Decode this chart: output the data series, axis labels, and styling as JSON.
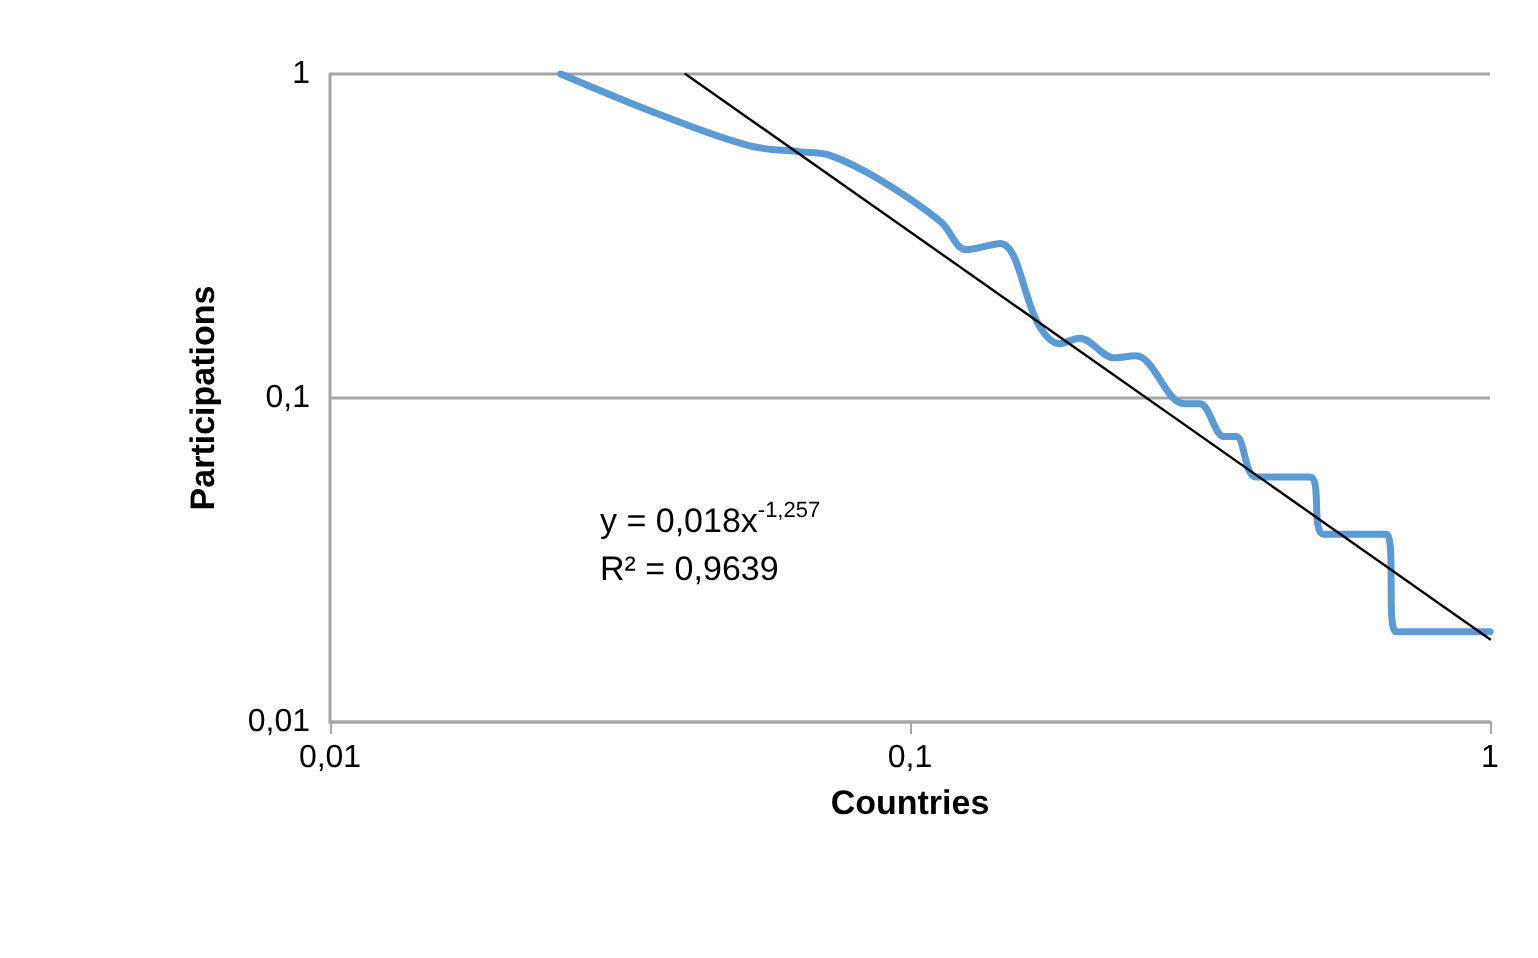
{
  "chart_data": {
    "type": "line",
    "xlabel": "Countries",
    "ylabel": "Participations",
    "log": "xy",
    "grid": "y",
    "marker": "none",
    "xlim": [
      0.01,
      1
    ],
    "ylim": [
      0.01,
      1
    ],
    "xticks": [
      {
        "value": 0.01,
        "label": "0,01"
      },
      {
        "value": 0.1,
        "label": "0,1"
      },
      {
        "value": 1,
        "label": "1"
      }
    ],
    "yticks": [
      {
        "value": 0.01,
        "label": "0,01"
      },
      {
        "value": 0.1,
        "label": "0,1"
      },
      {
        "value": 1,
        "label": "1"
      }
    ],
    "annotations": [
      "y = 0,018x$^{-1,257}$",
      "R² = 0,9639"
    ],
    "series": [
      {
        "color": "#5b9bd5",
        "x": [
          0.025,
          0.037,
          0.053,
          0.065,
          0.073,
          0.089,
          0.113,
          0.125,
          0.143,
          0.167,
          0.181,
          0.196,
          0.225,
          0.245,
          0.297,
          0.316,
          0.348,
          0.365,
          0.395,
          0.489,
          0.517,
          0.662,
          0.689,
          1
        ],
        "values": [
          1,
          0.75,
          0.6,
          0.575,
          0.56,
          0.47,
          0.35,
          0.287,
          0.3,
          0.167,
          0.147,
          0.153,
          0.133,
          0.135,
          0.096,
          0.096,
          0.076,
          0.076,
          0.057,
          0.057,
          0.038,
          0.038,
          0.019,
          0.019
        ]
      },
      {
        "type": "line",
        "color": "#000000",
        "x": [
          0.041,
          1
        ],
        "values": [
          1.0,
          0.018
        ]
      }
    ]
  }
}
